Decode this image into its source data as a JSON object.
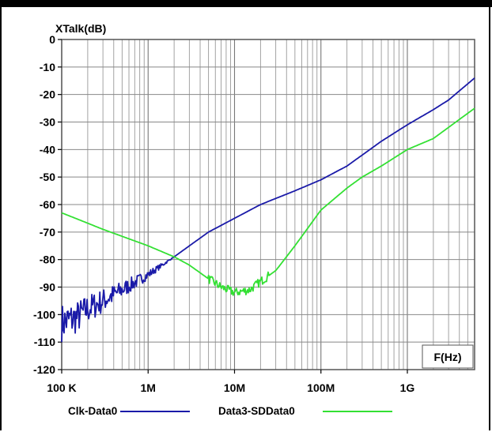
{
  "chart_data": {
    "type": "line",
    "title": "",
    "ylabel": "XTalk(dB)",
    "xlabel": "F(Hz)",
    "x_scale": "log",
    "xlim": [
      100000,
      6000000000
    ],
    "ylim": [
      -120,
      0
    ],
    "x_tick_labels": [
      {
        "x": 100000,
        "label": "100 K"
      },
      {
        "x": 1000000,
        "label": "1M"
      },
      {
        "x": 10000000,
        "label": "10M"
      },
      {
        "x": 100000000,
        "label": "100M"
      },
      {
        "x": 1000000000,
        "label": "1G"
      }
    ],
    "y_ticks": [
      0,
      -10,
      -20,
      -30,
      -40,
      -50,
      -60,
      -70,
      -80,
      -90,
      -100,
      -110,
      -120
    ],
    "grid": true,
    "legend_position": "bottom",
    "colors": {
      "clk": "#1a1aa8",
      "data3": "#33e033"
    },
    "series": [
      {
        "name": "Clk-Data0",
        "color": "#1a1aa8",
        "noisy_below_x": 2000000,
        "x": [
          100000,
          150000,
          200000,
          300000,
          500000,
          1000000,
          2000000,
          5000000,
          10000000,
          20000000,
          50000000,
          100000000,
          200000000,
          500000000,
          1000000000,
          2000000000,
          3000000000,
          6000000000
        ],
        "y": [
          -103,
          -101,
          -98,
          -95,
          -91,
          -85.5,
          -79,
          -70,
          -65,
          -60,
          -55,
          -51,
          -46,
          -37,
          -31,
          -25.5,
          -22,
          -14
        ]
      },
      {
        "name": "Data3-SDData0",
        "color": "#33e033",
        "noisy_between_x": [
          5000000,
          25000000
        ],
        "x": [
          100000,
          300000,
          1000000,
          2000000,
          3000000,
          5000000,
          7000000,
          10000000,
          15000000,
          20000000,
          30000000,
          50000000,
          100000000,
          200000000,
          300000000,
          500000000,
          1000000000,
          2000000000,
          6000000000
        ],
        "y": [
          -63,
          -69,
          -75,
          -79,
          -82,
          -87,
          -90,
          -92,
          -91,
          -88,
          -84,
          -75,
          -62,
          -54,
          -50,
          -46,
          -40,
          -36,
          -25
        ]
      }
    ]
  }
}
